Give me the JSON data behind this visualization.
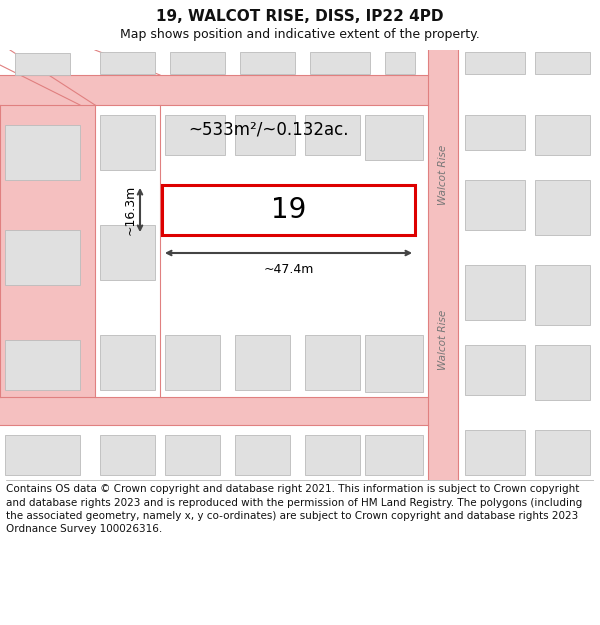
{
  "title": "19, WALCOT RISE, DISS, IP22 4PD",
  "subtitle": "Map shows position and indicative extent of the property.",
  "footer": "Contains OS data © Crown copyright and database right 2021. This information is subject to Crown copyright and database rights 2023 and is reproduced with the permission of HM Land Registry. The polygons (including the associated geometry, namely x, y co-ordinates) are subject to Crown copyright and database rights 2023 Ordnance Survey 100026316.",
  "background_color": "#ffffff",
  "map_bg": "#ffffff",
  "road_color": "#f5c0c0",
  "road_line_color": "#e08080",
  "building_fill": "#e0e0e0",
  "building_edge": "#bbbbbb",
  "highlight_color": "#dd0000",
  "dim_color": "#444444",
  "label_19": "19",
  "area_label": "~533m²/~0.132ac.",
  "dim_width": "~47.4m",
  "dim_height": "~16.3m",
  "road_label_top": "Walcot Rise",
  "road_label_bottom": "Walcot Rise",
  "title_fontsize": 11,
  "subtitle_fontsize": 9,
  "footer_fontsize": 7.5
}
